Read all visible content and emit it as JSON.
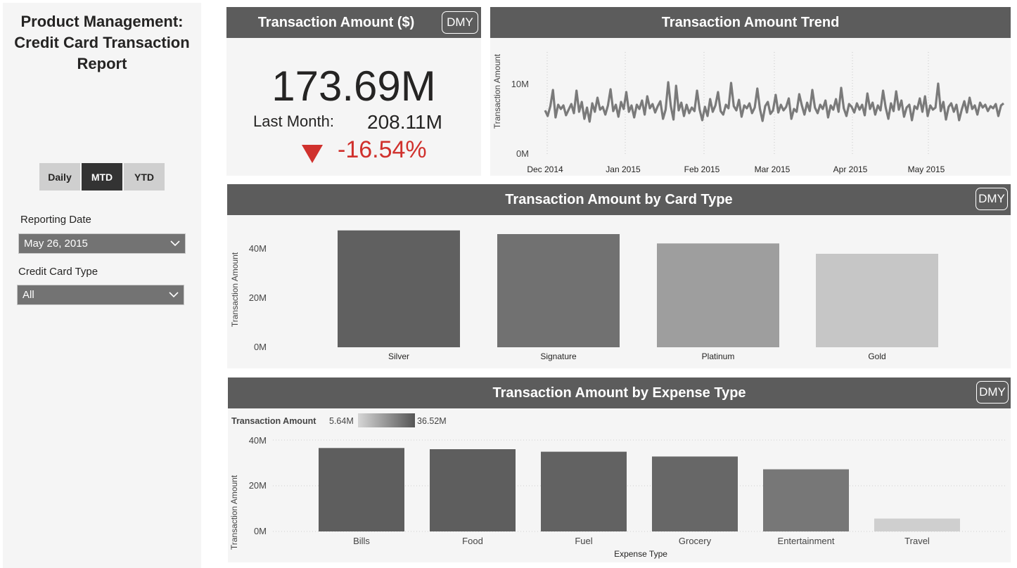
{
  "report": {
    "title": "Product Management:\nCredit Card Transaction\nReport"
  },
  "period_toggle": {
    "options": [
      "Daily",
      "MTD",
      "YTD"
    ],
    "selected": "MTD"
  },
  "filters": {
    "reporting_date": {
      "label": "Reporting Date",
      "value": "May 26, 2015"
    },
    "card_type": {
      "label": "Credit Card Type",
      "value": "All"
    }
  },
  "kpi": {
    "title": "Transaction Amount ($)",
    "dmy_label": "DMY",
    "value": "173.69M",
    "last_month_label": "Last Month:",
    "last_month_value": "208.11M",
    "change": "-16.54%",
    "change_color": "#d0312d"
  },
  "trend": {
    "title": "Transaction Amount Trend",
    "ylabel": "Transaction Amount",
    "yticks": [
      "0M",
      "10M"
    ],
    "xticks": [
      "Dec 2014",
      "Jan 2015",
      "Feb 2015",
      "Mar 2015",
      "Apr 2015",
      "May 2015"
    ],
    "line_color": "#7a7a7a"
  },
  "card_type_chart": {
    "title": "Transaction Amount by Card Type",
    "dmy_label": "DMY",
    "ylabel": "Transaction Amount",
    "yticks": [
      "0M",
      "20M",
      "40M"
    ]
  },
  "expense_chart": {
    "title": "Transaction Amount by Expense Type",
    "dmy_label": "DMY",
    "ylabel": "Transaction Amount",
    "xlabel": "Expense Type",
    "yticks": [
      "0M",
      "20M",
      "40M"
    ],
    "legend": {
      "title": "Transaction Amount",
      "min": "5.64M",
      "max": "36.52M"
    }
  },
  "chart_data": [
    {
      "type": "line",
      "title": "Transaction Amount Trend",
      "ylabel": "Transaction Amount",
      "x_range": [
        "2014-12-01",
        "2015-05-26"
      ],
      "ylim": [
        0,
        12
      ],
      "y_unit": "M",
      "values": [
        6.2,
        5.4,
        6.8,
        9.1,
        5.2,
        7.0,
        6.4,
        6.9,
        5.5,
        6.3,
        7.1,
        5.8,
        9.0,
        6.0,
        7.4,
        5.0,
        6.6,
        4.6,
        7.2,
        6.0,
        8.0,
        6.3,
        6.7,
        5.6,
        6.9,
        9.2,
        6.1,
        7.0,
        5.3,
        7.4,
        6.4,
        8.8,
        6.0,
        6.9,
        5.2,
        7.0,
        6.4,
        7.6,
        5.6,
        8.2,
        6.5,
        7.1,
        5.9,
        6.8,
        7.5,
        5.0,
        6.3,
        10.2,
        6.8,
        4.9,
        9.7,
        6.2,
        7.3,
        5.4,
        7.0,
        5.8,
        6.6,
        6.1,
        9.0,
        6.3,
        4.8,
        6.7,
        5.4,
        7.8,
        6.0,
        6.9,
        8.8,
        6.1,
        5.6,
        7.0,
        6.5,
        10.1,
        6.8,
        6.2,
        7.7,
        5.3,
        6.9,
        6.5,
        7.2,
        5.8,
        6.6,
        9.3,
        6.4,
        4.7,
        6.8,
        7.4,
        5.7,
        6.2,
        8.4,
        5.9,
        7.0,
        6.2,
        6.7,
        7.9,
        5.0,
        6.4,
        6.0,
        8.5,
        6.9,
        5.6,
        7.3,
        6.1,
        9.1,
        6.6,
        5.8,
        7.0,
        6.4,
        7.6,
        5.2,
        6.9,
        6.3,
        7.8,
        6.0,
        9.4,
        6.5,
        5.4,
        7.1,
        6.7,
        5.9,
        7.2,
        6.3,
        7.0,
        5.5,
        8.6,
        6.4,
        7.3,
        5.6,
        6.9,
        6.2,
        9.0,
        6.6,
        5.0,
        7.2,
        6.1,
        8.9,
        6.3,
        7.6,
        5.3,
        6.6,
        7.0,
        4.8,
        6.8,
        6.4,
        7.9,
        6.0,
        8.2,
        5.4,
        6.9,
        6.3,
        6.6,
        10.0,
        6.1,
        7.4,
        4.9,
        6.7,
        7.2,
        6.0,
        7.0,
        4.8,
        6.3,
        7.5,
        5.9,
        8.0,
        6.4,
        6.9,
        5.6,
        7.3,
        6.6,
        7.0,
        6.1,
        6.8,
        6.5,
        7.1,
        5.4,
        6.9,
        7.2
      ]
    },
    {
      "type": "bar",
      "title": "Transaction Amount by Card Type",
      "categories": [
        "Silver",
        "Signature",
        "Platinum",
        "Gold"
      ],
      "values": [
        47.5,
        46.0,
        42.2,
        38.0
      ],
      "colors": [
        "#606060",
        "#717171",
        "#9e9e9e",
        "#c6c6c6"
      ],
      "ylabel": "Transaction Amount",
      "ylim": [
        0,
        50
      ]
    },
    {
      "type": "bar",
      "title": "Transaction Amount by Expense Type",
      "categories": [
        "Bills",
        "Food",
        "Fuel",
        "Grocery",
        "Entertainment",
        "Travel"
      ],
      "values": [
        36.52,
        36.0,
        34.9,
        32.8,
        27.2,
        5.64
      ],
      "colors": [
        "#5e5e5e",
        "#5e5e5e",
        "#626262",
        "#676767",
        "#777777",
        "#cfcfcf"
      ],
      "xlabel": "Expense Type",
      "ylabel": "Transaction Amount",
      "ylim": [
        0,
        40
      ]
    }
  ]
}
